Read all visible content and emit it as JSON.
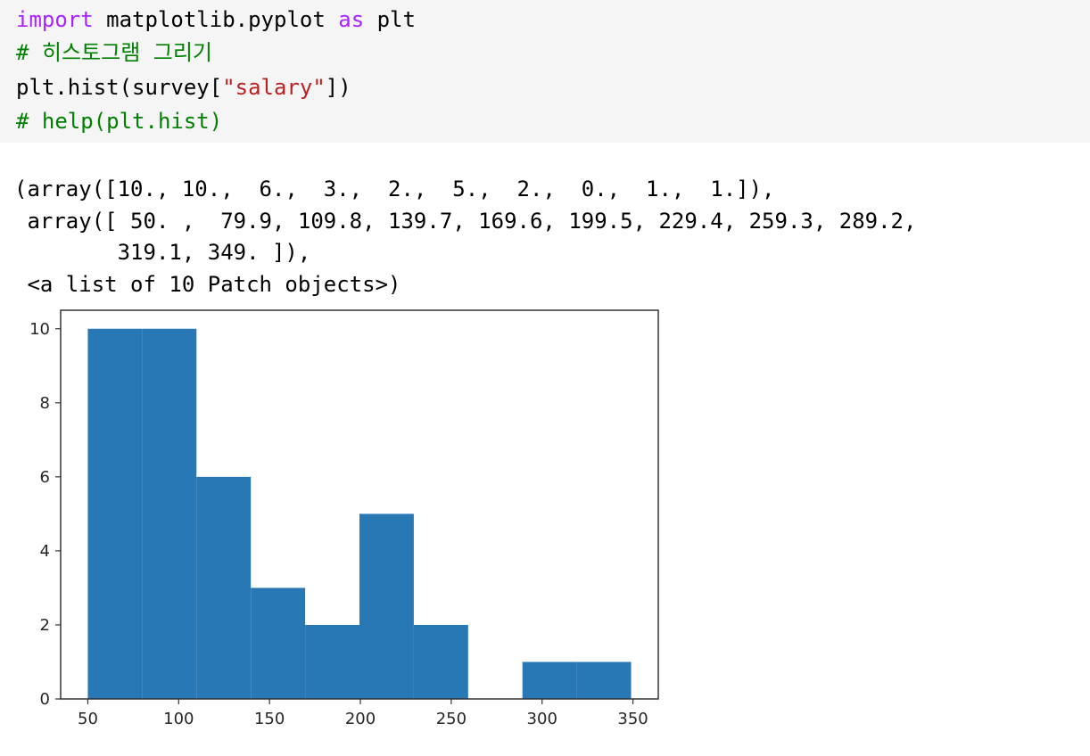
{
  "code": {
    "line1": {
      "kw1": "import",
      "mid": " matplotlib.pyplot ",
      "kw2": "as",
      "end": " plt"
    },
    "line2": "# 히스토그램 그리기",
    "line3": {
      "pre": "plt.hist(survey[",
      "str": "\"salary\"",
      "post": "])"
    },
    "line4": "# help(plt.hist)"
  },
  "output": {
    "lines": [
      "(array([10., 10.,  6.,  3.,  2.,  5.,  2.,  0.,  1.,  1.]),",
      " array([ 50. ,  79.9, 109.8, 139.7, 169.6, 199.5, 229.4, 259.3, 289.2,",
      "        319.1, 349. ]),",
      " <a list of 10 Patch objects>)"
    ]
  },
  "chart_data": {
    "type": "bar",
    "title": "",
    "xlabel": "",
    "ylabel": "",
    "bin_edges": [
      50.0,
      79.9,
      109.8,
      139.7,
      169.6,
      199.5,
      229.4,
      259.3,
      289.2,
      319.1,
      349.0
    ],
    "values": [
      10,
      10,
      6,
      3,
      2,
      5,
      2,
      0,
      1,
      1
    ],
    "xlim": [
      35.05,
      363.95
    ],
    "ylim": [
      0,
      10.5
    ],
    "xticks": [
      50,
      100,
      150,
      200,
      250,
      300,
      350
    ],
    "yticks": [
      0,
      2,
      4,
      6,
      8,
      10
    ],
    "grid": false,
    "colors": {
      "bar": "#2878b5",
      "axes": "#333333"
    }
  }
}
